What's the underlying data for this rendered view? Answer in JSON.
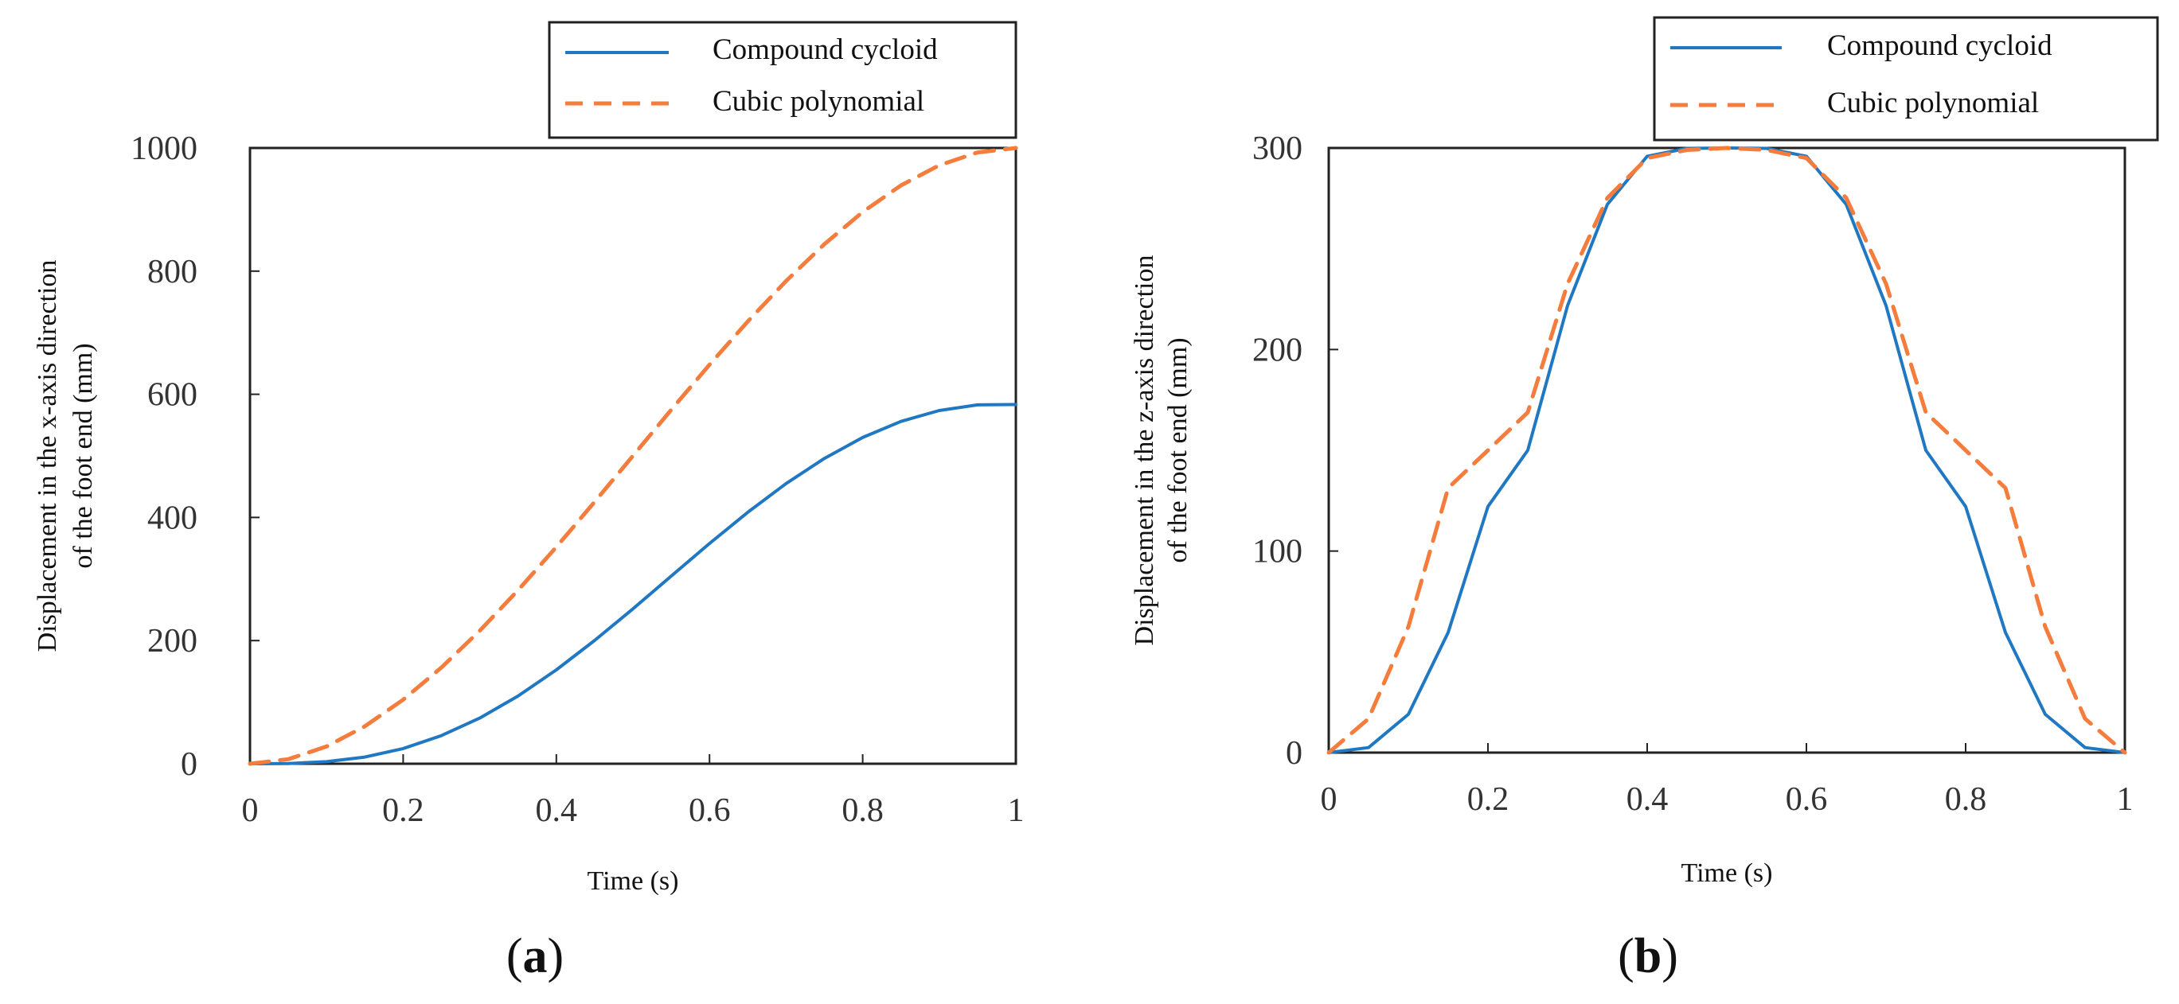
{
  "chart_data": [
    {
      "type": "line",
      "panel_label": "a",
      "title": "",
      "xlabel": "Time (s)",
      "ylabel_line1": "Displacement in the x-axis direction",
      "ylabel_line2": "of the foot end (mm)",
      "xlim": [
        0,
        1
      ],
      "ylim": [
        0,
        1000
      ],
      "xticks": [
        0,
        0.2,
        0.4,
        0.6,
        0.8,
        1
      ],
      "xtick_labels": [
        "0",
        "0.2",
        "0.4",
        "0.6",
        "0.8",
        "1"
      ],
      "yticks": [
        0,
        200,
        400,
        600,
        800,
        1000
      ],
      "ytick_labels": [
        "0",
        "200",
        "400",
        "600",
        "800",
        "1000"
      ],
      "legend_position": "top-right (outside axes)",
      "x": [
        0,
        0.05,
        0.1,
        0.15,
        0.2,
        0.25,
        0.3,
        0.35,
        0.4,
        0.45,
        0.5,
        0.55,
        0.6,
        0.65,
        0.7,
        0.75,
        0.8,
        0.85,
        0.9,
        0.95,
        1
      ],
      "series": [
        {
          "name": "Compound cycloid",
          "color": "#1f78c1",
          "style": "solid",
          "values": [
            0,
            0.4,
            3.3,
            10.9,
            24.7,
            45.7,
            74.1,
            109.9,
            152.4,
            200.2,
            251.6,
            304.8,
            357.7,
            408.4,
            455.0,
            495.9,
            529.9,
            556.0,
            573.7,
            582.8,
            583.3
          ]
        },
        {
          "name": "Cubic polynomial",
          "color": "#f47c3c",
          "style": "dashed",
          "values": [
            0,
            7.3,
            28.0,
            60.8,
            104.0,
            156.3,
            216.0,
            281.8,
            352.0,
            425.3,
            500.0,
            574.8,
            648.0,
            718.3,
            784.0,
            843.8,
            896.0,
            939.3,
            972.0,
            992.8,
            1000.0
          ]
        }
      ]
    },
    {
      "type": "line",
      "panel_label": "b",
      "title": "",
      "xlabel": "Time (s)",
      "ylabel_line1": "Displacement in the z-axis direction",
      "ylabel_line2": "of the foot end (mm)",
      "xlim": [
        0,
        1
      ],
      "ylim": [
        0,
        300
      ],
      "xticks": [
        0,
        0.2,
        0.4,
        0.6,
        0.8,
        1
      ],
      "xtick_labels": [
        "0",
        "0.2",
        "0.4",
        "0.6",
        "0.8",
        "1"
      ],
      "yticks": [
        0,
        100,
        200,
        300
      ],
      "ytick_labels": [
        "0",
        "100",
        "200",
        "300"
      ],
      "legend_position": "top-right (outside axes)",
      "x": [
        0,
        0.05,
        0.1,
        0.15,
        0.2,
        0.25,
        0.3,
        0.35,
        0.4,
        0.45,
        0.5,
        0.55,
        0.6,
        0.65,
        0.7,
        0.75,
        0.8,
        0.85,
        0.9,
        0.95,
        1
      ],
      "series": [
        {
          "name": "Compound cycloid",
          "color": "#1f78c1",
          "style": "solid",
          "values": [
            0,
            2.5,
            19.0,
            59.6,
            122.1,
            150.0,
            221.8,
            272.0,
            295.9,
            299.8,
            300.0,
            299.8,
            295.9,
            272.0,
            221.8,
            150.0,
            122.1,
            59.6,
            19.0,
            2.5,
            0
          ]
        },
        {
          "name": "Cubic polynomial",
          "color": "#f47c3c",
          "style": "dashed",
          "values": [
            0,
            16.8,
            62.4,
            131.3,
            150.0,
            168.8,
            232.6,
            275.2,
            295.0,
            299.0,
            300.0,
            299.0,
            295.0,
            275.2,
            232.6,
            168.8,
            150.0,
            131.3,
            62.4,
            16.8,
            0
          ]
        }
      ]
    }
  ]
}
